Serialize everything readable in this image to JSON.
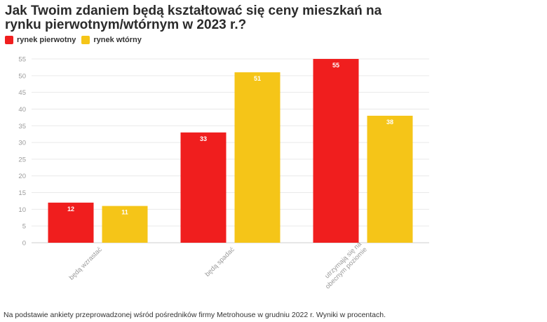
{
  "title": "Jak Twoim zdaniem będą kształtować się ceny mieszkań na rynku pierwotnym/wtórnym w 2023 r.?",
  "footnote": "Na podstawie ankiety przeprowadzonej wśród pośredników firmy Metrohouse w grudniu 2022 r. Wyniki w procentach.",
  "colors": {
    "primary_market": "#f01e1e",
    "secondary_market": "#f5c518"
  },
  "chart_data": {
    "type": "bar",
    "categories": [
      [
        "będą wzrastać"
      ],
      [
        "będą spadać"
      ],
      [
        "utrzymają się na",
        "obecnym poziomie"
      ]
    ],
    "series": [
      {
        "name": "rynek pierwotny",
        "values": [
          12,
          33,
          55
        ]
      },
      {
        "name": "rynek wtórny",
        "values": [
          11,
          51,
          38
        ]
      }
    ],
    "ylim": [
      0,
      55
    ],
    "yticks": [
      0,
      5,
      10,
      15,
      20,
      25,
      30,
      35,
      40,
      45,
      50,
      55
    ],
    "grid": true,
    "legend": "top-left"
  }
}
